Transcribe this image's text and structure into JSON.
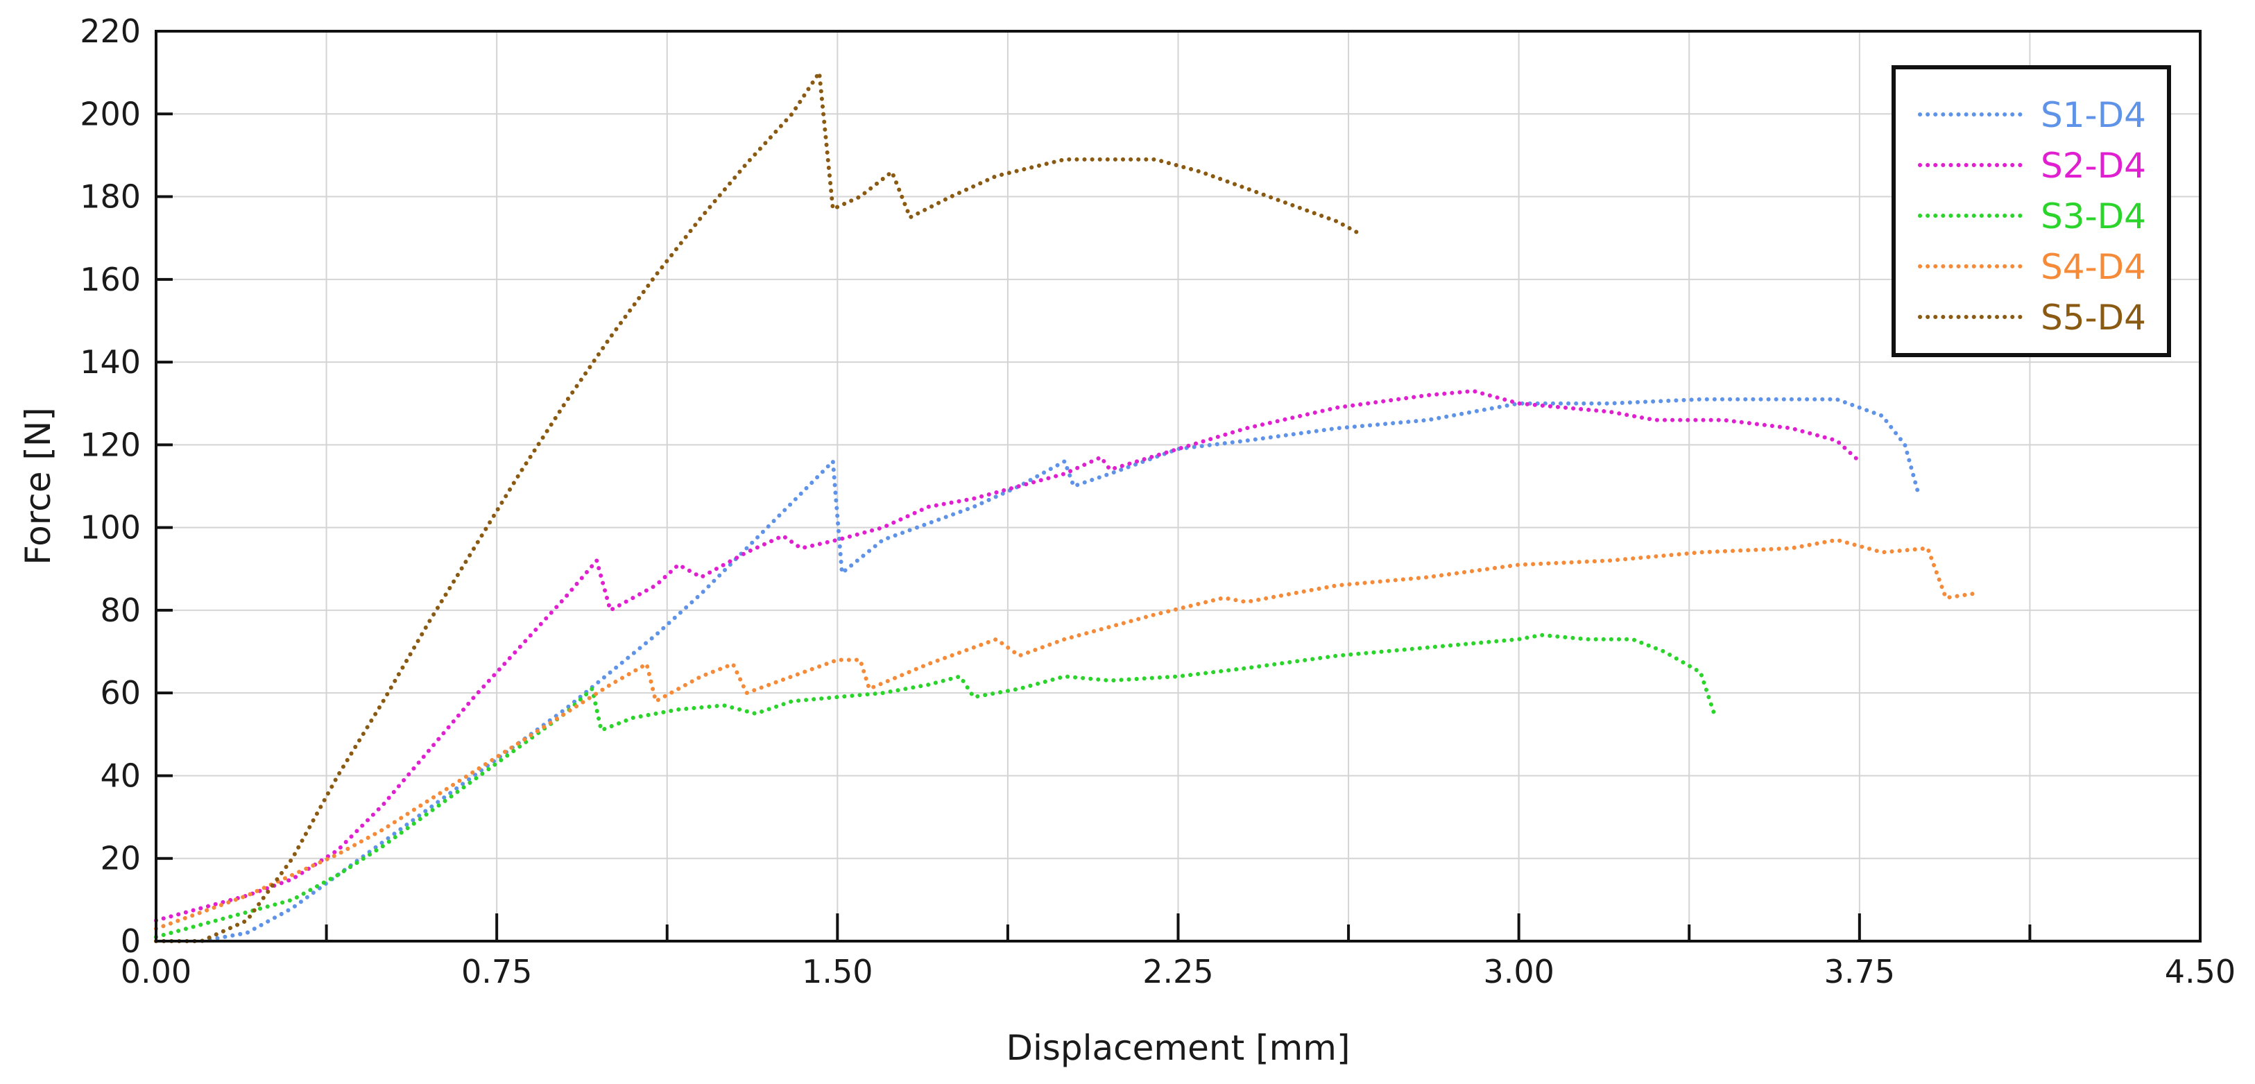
{
  "chart_data": {
    "type": "line",
    "title": "",
    "xlabel": "Displacement [mm]",
    "ylabel": "Force [N]",
    "xlim": [
      0,
      4.5
    ],
    "ylim": [
      0,
      220
    ],
    "x_ticks": [
      0.0,
      0.75,
      1.5,
      2.25,
      3.0,
      3.75,
      4.5
    ],
    "x_tick_labels": [
      "0.00",
      "0.75",
      "1.50",
      "2.25",
      "3.00",
      "3.75",
      "4.50"
    ],
    "y_ticks": [
      0,
      20,
      40,
      60,
      80,
      100,
      120,
      140,
      160,
      180,
      200,
      220
    ],
    "y_tick_labels": [
      "0",
      "20",
      "40",
      "60",
      "80",
      "100",
      "120",
      "140",
      "160",
      "180",
      "200",
      "220"
    ],
    "grid": true,
    "line_style": "dotted",
    "legend_position": "top-right",
    "series": [
      {
        "name": "S1-D4",
        "color": "#5f93e8",
        "points": [
          [
            0.0,
            0
          ],
          [
            0.1,
            0
          ],
          [
            0.2,
            2
          ],
          [
            0.3,
            8
          ],
          [
            0.4,
            16
          ],
          [
            0.5,
            24
          ],
          [
            0.6,
            32
          ],
          [
            0.7,
            40
          ],
          [
            0.8,
            48
          ],
          [
            0.9,
            56
          ],
          [
            1.0,
            65
          ],
          [
            1.1,
            74
          ],
          [
            1.2,
            84
          ],
          [
            1.3,
            95
          ],
          [
            1.4,
            106
          ],
          [
            1.49,
            116
          ],
          [
            1.51,
            89
          ],
          [
            1.6,
            97
          ],
          [
            1.7,
            101
          ],
          [
            1.8,
            105
          ],
          [
            1.9,
            110
          ],
          [
            2.0,
            116
          ],
          [
            2.02,
            110
          ],
          [
            2.1,
            113
          ],
          [
            2.25,
            119
          ],
          [
            2.4,
            121
          ],
          [
            2.6,
            124
          ],
          [
            2.8,
            126
          ],
          [
            3.0,
            130
          ],
          [
            3.2,
            130
          ],
          [
            3.4,
            131
          ],
          [
            3.55,
            131
          ],
          [
            3.7,
            131
          ],
          [
            3.8,
            127
          ],
          [
            3.85,
            120
          ],
          [
            3.88,
            108
          ]
        ]
      },
      {
        "name": "S2-D4",
        "color": "#e020d0",
        "points": [
          [
            0.0,
            5
          ],
          [
            0.1,
            8
          ],
          [
            0.2,
            11
          ],
          [
            0.3,
            15
          ],
          [
            0.4,
            22
          ],
          [
            0.5,
            33
          ],
          [
            0.6,
            46
          ],
          [
            0.7,
            59
          ],
          [
            0.8,
            71
          ],
          [
            0.9,
            83
          ],
          [
            0.97,
            92
          ],
          [
            1.0,
            80
          ],
          [
            1.1,
            86
          ],
          [
            1.15,
            91
          ],
          [
            1.2,
            88
          ],
          [
            1.3,
            94
          ],
          [
            1.38,
            98
          ],
          [
            1.42,
            95
          ],
          [
            1.5,
            97
          ],
          [
            1.6,
            100
          ],
          [
            1.7,
            105
          ],
          [
            1.8,
            107
          ],
          [
            1.9,
            110
          ],
          [
            2.0,
            113
          ],
          [
            2.08,
            117
          ],
          [
            2.1,
            114
          ],
          [
            2.25,
            119
          ],
          [
            2.4,
            124
          ],
          [
            2.6,
            129
          ],
          [
            2.8,
            132
          ],
          [
            2.9,
            133
          ],
          [
            3.0,
            130
          ],
          [
            3.1,
            129
          ],
          [
            3.2,
            128
          ],
          [
            3.3,
            126
          ],
          [
            3.45,
            126
          ],
          [
            3.6,
            124
          ],
          [
            3.7,
            121
          ],
          [
            3.75,
            116
          ]
        ]
      },
      {
        "name": "S3-D4",
        "color": "#2ad42a",
        "points": [
          [
            0.0,
            1
          ],
          [
            0.1,
            4
          ],
          [
            0.2,
            7
          ],
          [
            0.3,
            10
          ],
          [
            0.4,
            16
          ],
          [
            0.5,
            23
          ],
          [
            0.6,
            31
          ],
          [
            0.7,
            39
          ],
          [
            0.8,
            47
          ],
          [
            0.9,
            55
          ],
          [
            0.96,
            61
          ],
          [
            0.98,
            51
          ],
          [
            1.05,
            54
          ],
          [
            1.15,
            56
          ],
          [
            1.25,
            57
          ],
          [
            1.32,
            55
          ],
          [
            1.4,
            58
          ],
          [
            1.5,
            59
          ],
          [
            1.6,
            60
          ],
          [
            1.7,
            62
          ],
          [
            1.77,
            64
          ],
          [
            1.8,
            59
          ],
          [
            1.9,
            61
          ],
          [
            2.0,
            64
          ],
          [
            2.1,
            63
          ],
          [
            2.25,
            64
          ],
          [
            2.4,
            66
          ],
          [
            2.6,
            69
          ],
          [
            2.8,
            71
          ],
          [
            3.0,
            73
          ],
          [
            3.05,
            74
          ],
          [
            3.15,
            73
          ],
          [
            3.25,
            73
          ],
          [
            3.32,
            70
          ],
          [
            3.4,
            65
          ],
          [
            3.43,
            55
          ]
        ]
      },
      {
        "name": "S4-D4",
        "color": "#f58b38",
        "points": [
          [
            0.0,
            3
          ],
          [
            0.1,
            7
          ],
          [
            0.2,
            11
          ],
          [
            0.3,
            16
          ],
          [
            0.4,
            21
          ],
          [
            0.5,
            27
          ],
          [
            0.6,
            34
          ],
          [
            0.7,
            41
          ],
          [
            0.8,
            48
          ],
          [
            0.9,
            55
          ],
          [
            1.0,
            62
          ],
          [
            1.08,
            67
          ],
          [
            1.1,
            58
          ],
          [
            1.2,
            64
          ],
          [
            1.27,
            67
          ],
          [
            1.3,
            60
          ],
          [
            1.4,
            64
          ],
          [
            1.5,
            68
          ],
          [
            1.55,
            68
          ],
          [
            1.57,
            61
          ],
          [
            1.7,
            67
          ],
          [
            1.85,
            73
          ],
          [
            1.9,
            69
          ],
          [
            2.0,
            73
          ],
          [
            2.2,
            79
          ],
          [
            2.35,
            83
          ],
          [
            2.4,
            82
          ],
          [
            2.6,
            86
          ],
          [
            2.8,
            88
          ],
          [
            3.0,
            91
          ],
          [
            3.2,
            92
          ],
          [
            3.4,
            94
          ],
          [
            3.6,
            95
          ],
          [
            3.7,
            97
          ],
          [
            3.8,
            94
          ],
          [
            3.9,
            95
          ],
          [
            3.94,
            83
          ],
          [
            4.0,
            84
          ]
        ]
      },
      {
        "name": "S5-D4",
        "color": "#8b5a12",
        "points": [
          [
            0.0,
            0
          ],
          [
            0.1,
            0
          ],
          [
            0.2,
            5
          ],
          [
            0.3,
            20
          ],
          [
            0.4,
            40
          ],
          [
            0.5,
            58
          ],
          [
            0.6,
            77
          ],
          [
            0.7,
            95
          ],
          [
            0.8,
            113
          ],
          [
            0.9,
            130
          ],
          [
            1.0,
            146
          ],
          [
            1.1,
            161
          ],
          [
            1.2,
            175
          ],
          [
            1.3,
            188
          ],
          [
            1.4,
            200
          ],
          [
            1.46,
            210
          ],
          [
            1.49,
            177
          ],
          [
            1.55,
            180
          ],
          [
            1.62,
            186
          ],
          [
            1.66,
            175
          ],
          [
            1.75,
            180
          ],
          [
            1.85,
            185
          ],
          [
            2.0,
            189
          ],
          [
            2.2,
            189
          ],
          [
            2.3,
            186
          ],
          [
            2.4,
            182
          ],
          [
            2.5,
            178
          ],
          [
            2.6,
            174
          ],
          [
            2.65,
            171
          ]
        ]
      }
    ]
  }
}
